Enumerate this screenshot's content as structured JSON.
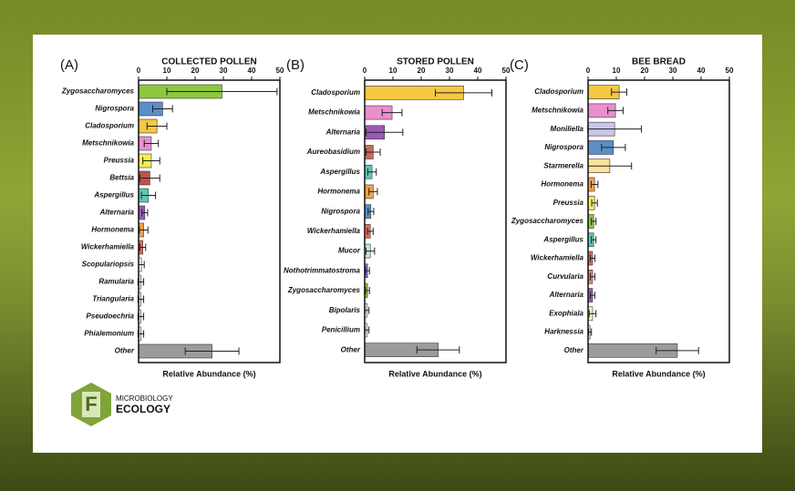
{
  "chart_data": [
    {
      "type": "bar",
      "panel_label": "(A)",
      "title": "COLLECTED POLLEN",
      "xlabel": "Relative Abundance (%)",
      "categories": [
        "Zygosaccharomyces",
        "Nigrospora",
        "Cladosporium",
        "Metschnikowia",
        "Preussia",
        "Bettsia",
        "Aspergillus",
        "Alternaria",
        "Hormonema",
        "Wickerhamiella",
        "Scopulariopsis",
        "Ramularia",
        "Triangularia",
        "Pseudoechria",
        "Phialemonium",
        "Other"
      ],
      "values": [
        29.5,
        8.5,
        6.5,
        4.5,
        4.5,
        4,
        3.5,
        2.2,
        1.8,
        1.5,
        1,
        0.8,
        0.8,
        0.8,
        0.8,
        26
      ],
      "errors": [
        19.5,
        3.5,
        3.5,
        2.5,
        3,
        3.5,
        2.5,
        1,
        1.5,
        1,
        1,
        1,
        1,
        1,
        1,
        9.5
      ],
      "colors": [
        "#8dc63f",
        "#5b8fc7",
        "#f5c842",
        "#e98fd0",
        "#f3ef5a",
        "#c0504d",
        "#5cc7b6",
        "#9b59b6",
        "#f5a142",
        "#e8685a",
        "#f2f2f2",
        "#f2f2f2",
        "#f2f2f2",
        "#f2f2f2",
        "#f2f2f2",
        "#9b9b9b"
      ],
      "xlim": [
        0,
        50
      ],
      "xticks": [
        0,
        10,
        20,
        30,
        40,
        50
      ]
    },
    {
      "type": "bar",
      "panel_label": "(B)",
      "title": "STORED POLLEN",
      "xlabel": "Relative Abundance (%)",
      "categories": [
        "Cladosporium",
        "Metschnikowia",
        "Alternaria",
        "Aureobasidium",
        "Aspergillus",
        "Hormonema",
        "Nigrospora",
        "Wickerhamiella",
        "Mucor",
        "Nothotrimmatostroma",
        "Zygosaccharomyces",
        "Bipolaris",
        "Penicillium",
        "Other"
      ],
      "values": [
        35,
        9.7,
        7,
        3,
        2.6,
        3,
        2.2,
        2,
        2,
        1,
        1,
        0.8,
        0.8,
        26
      ],
      "errors": [
        10,
        3.5,
        6.5,
        2.5,
        1.5,
        1.5,
        1,
        1,
        1.5,
        0.7,
        0.7,
        0.7,
        0.7,
        7.5
      ],
      "colors": [
        "#f5c842",
        "#e98fd0",
        "#9b59b6",
        "#c46a5a",
        "#5cc7b6",
        "#f5a142",
        "#5b8fc7",
        "#e8685a",
        "#bfe8e0",
        "#7d6bd1",
        "#8dc63f",
        "#f2f2f2",
        "#f2f2f2",
        "#9b9b9b"
      ],
      "xlim": [
        0,
        50
      ],
      "xticks": [
        0,
        10,
        20,
        30,
        40,
        50
      ]
    },
    {
      "type": "bar",
      "panel_label": "(C)",
      "title": "BEE BREAD",
      "xlabel": "Relative Abundance (%)",
      "categories": [
        "Cladosporium",
        "Metschnikowia",
        "Moniliella",
        "Nigrospora",
        "Starmerella",
        "Hormonema",
        "Preussia",
        "Zygosaccharomyces",
        "Aspergillus",
        "Wickerhamiella",
        "Curvularia",
        "Alternaria",
        "Exophiala",
        "Harknessia",
        "Other"
      ],
      "values": [
        11,
        9.7,
        9.4,
        9,
        7.7,
        2.3,
        2.3,
        2,
        2,
        1.6,
        1.6,
        1.6,
        1.6,
        0.7,
        31.6
      ],
      "errors": [
        2.7,
        2.7,
        9.5,
        4.2,
        7.7,
        1.2,
        1,
        0.8,
        0.8,
        0.8,
        0.8,
        0.8,
        1.2,
        0.5,
        7.5
      ],
      "colors": [
        "#f5c842",
        "#e98fd0",
        "#c9c6e8",
        "#5b8fc7",
        "#fbe29a",
        "#f5a142",
        "#f3ef5a",
        "#8dc63f",
        "#5cc7b6",
        "#e8685a",
        "#f08070",
        "#9b59b6",
        "#f6f6c0",
        "#f2f2f2",
        "#9b9b9b"
      ],
      "xlim": [
        0,
        50
      ],
      "xticks": [
        0,
        10,
        20,
        30,
        40,
        50
      ]
    }
  ],
  "logo": {
    "letter": "F",
    "line1": "MICROBIOLOGY",
    "line2": "ECOLOGY"
  }
}
